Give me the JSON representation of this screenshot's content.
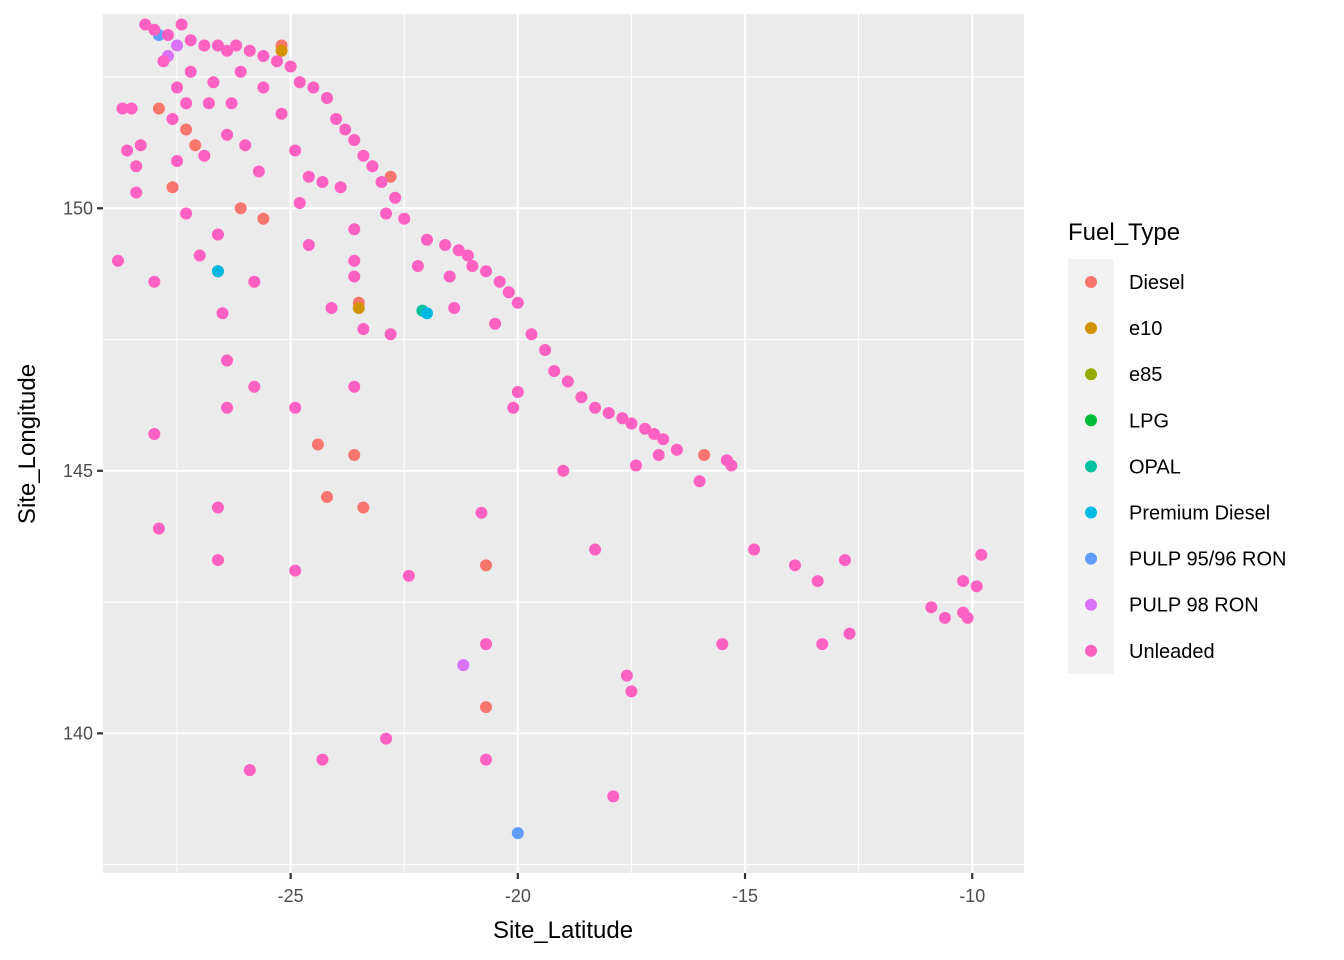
{
  "chart_data": {
    "type": "scatter",
    "xlabel": "Site_Latitude",
    "ylabel": "Site_Longitude",
    "xlim": [
      -29.13,
      -8.86
    ],
    "ylim": [
      137.34,
      153.7
    ],
    "x_ticks": [
      -25,
      -20,
      -15,
      -10
    ],
    "x_tick_labels": [
      "-25",
      "-20",
      "-15",
      "-10"
    ],
    "y_ticks": [
      140,
      145,
      150
    ],
    "y_tick_labels": [
      "140",
      "145",
      "150"
    ],
    "grid": true,
    "legend": {
      "title": "Fuel_Type",
      "placement": "right"
    },
    "series": [
      {
        "name": "Diesel",
        "color": "#F8766D",
        "points": [
          [
            -25.2,
            153.1
          ],
          [
            -27.6,
            150.4
          ],
          [
            -26.1,
            150.0
          ],
          [
            -25.6,
            149.8
          ],
          [
            -27.1,
            151.2
          ],
          [
            -27.3,
            151.5
          ],
          [
            -22.8,
            150.6
          ],
          [
            -23.5,
            148.2
          ],
          [
            -24.4,
            145.5
          ],
          [
            -23.6,
            145.3
          ],
          [
            -24.2,
            144.5
          ],
          [
            -23.4,
            144.3
          ],
          [
            -20.7,
            143.2
          ],
          [
            -20.7,
            140.5
          ],
          [
            -15.9,
            145.3
          ],
          [
            -27.9,
            151.9
          ],
          [
            -26.6,
            148.8
          ]
        ]
      },
      {
        "name": "e10",
        "color": "#D39200",
        "points": [
          [
            -25.2,
            153.0
          ],
          [
            -23.5,
            148.1
          ]
        ]
      },
      {
        "name": "e85",
        "color": "#93AA00",
        "points": []
      },
      {
        "name": "LPG",
        "color": "#00BA38",
        "points": []
      },
      {
        "name": "OPAL",
        "color": "#00C19F",
        "points": [
          [
            -22.1,
            148.05
          ]
        ]
      },
      {
        "name": "Premium Diesel",
        "color": "#00B9E3",
        "points": [
          [
            -22.0,
            148.0
          ],
          [
            -26.6,
            148.8
          ]
        ]
      },
      {
        "name": "PULP 95/96 RON",
        "color": "#619CFF",
        "points": [
          [
            -20.0,
            138.1
          ],
          [
            -27.9,
            153.3
          ]
        ]
      },
      {
        "name": "PULP 98 RON",
        "color": "#DB72FB",
        "points": [
          [
            -21.2,
            141.3
          ],
          [
            -27.5,
            153.1
          ],
          [
            -27.7,
            152.9
          ]
        ]
      },
      {
        "name": "Unleaded",
        "color": "#FF61C3",
        "points": [
          [
            -28.2,
            153.5
          ],
          [
            -28.0,
            153.4
          ],
          [
            -27.7,
            153.3
          ],
          [
            -27.4,
            153.5
          ],
          [
            -27.2,
            153.2
          ],
          [
            -26.9,
            153.1
          ],
          [
            -26.6,
            153.1
          ],
          [
            -26.4,
            153.0
          ],
          [
            -26.2,
            153.1
          ],
          [
            -25.9,
            153.0
          ],
          [
            -25.6,
            152.9
          ],
          [
            -25.3,
            152.8
          ],
          [
            -25.0,
            152.7
          ],
          [
            -24.8,
            152.4
          ],
          [
            -24.5,
            152.3
          ],
          [
            -24.2,
            152.1
          ],
          [
            -24.0,
            151.7
          ],
          [
            -23.8,
            151.5
          ],
          [
            -23.6,
            151.3
          ],
          [
            -23.4,
            151.0
          ],
          [
            -23.2,
            150.8
          ],
          [
            -23.0,
            150.5
          ],
          [
            -22.7,
            150.2
          ],
          [
            -22.5,
            149.8
          ],
          [
            -22.0,
            149.4
          ],
          [
            -21.6,
            149.3
          ],
          [
            -21.3,
            149.2
          ],
          [
            -21.1,
            149.1
          ],
          [
            -21.0,
            148.9
          ],
          [
            -20.7,
            148.8
          ],
          [
            -20.4,
            148.6
          ],
          [
            -20.2,
            148.4
          ],
          [
            -20.0,
            148.2
          ],
          [
            -19.7,
            147.6
          ],
          [
            -19.4,
            147.3
          ],
          [
            -19.2,
            146.9
          ],
          [
            -18.9,
            146.7
          ],
          [
            -18.6,
            146.4
          ],
          [
            -18.3,
            146.2
          ],
          [
            -18.0,
            146.1
          ],
          [
            -17.7,
            146.0
          ],
          [
            -17.5,
            145.9
          ],
          [
            -17.2,
            145.8
          ],
          [
            -17.0,
            145.7
          ],
          [
            -16.8,
            145.6
          ],
          [
            -16.5,
            145.4
          ],
          [
            -15.4,
            145.2
          ],
          [
            -15.3,
            145.1
          ],
          [
            -16.0,
            144.8
          ],
          [
            -17.4,
            145.1
          ],
          [
            -16.9,
            145.3
          ],
          [
            -28.5,
            151.9
          ],
          [
            -28.7,
            151.9
          ],
          [
            -28.3,
            151.2
          ],
          [
            -28.6,
            151.1
          ],
          [
            -28.4,
            150.8
          ],
          [
            -28.4,
            150.3
          ],
          [
            -28.8,
            149.0
          ],
          [
            -28.0,
            148.6
          ],
          [
            -28.0,
            145.7
          ],
          [
            -27.9,
            143.9
          ],
          [
            -26.6,
            144.3
          ],
          [
            -26.6,
            143.3
          ],
          [
            -25.9,
            139.3
          ],
          [
            -24.9,
            143.1
          ],
          [
            -24.3,
            139.5
          ],
          [
            -22.9,
            139.9
          ],
          [
            -22.4,
            143.0
          ],
          [
            -20.8,
            144.2
          ],
          [
            -20.7,
            141.7
          ],
          [
            -20.7,
            139.5
          ],
          [
            -17.9,
            138.8
          ],
          [
            -17.6,
            141.1
          ],
          [
            -17.5,
            140.8
          ],
          [
            -18.3,
            143.5
          ],
          [
            -19.0,
            145.0
          ],
          [
            -15.5,
            141.7
          ],
          [
            -14.8,
            143.5
          ],
          [
            -13.9,
            143.2
          ],
          [
            -13.4,
            142.9
          ],
          [
            -13.3,
            141.7
          ],
          [
            -12.7,
            141.9
          ],
          [
            -12.8,
            143.3
          ],
          [
            -10.9,
            142.4
          ],
          [
            -10.6,
            142.2
          ],
          [
            -10.2,
            142.3
          ],
          [
            -10.2,
            142.9
          ],
          [
            -9.9,
            142.8
          ],
          [
            -9.8,
            143.4
          ],
          [
            -10.1,
            142.2
          ],
          [
            -26.4,
            147.1
          ],
          [
            -25.8,
            146.6
          ],
          [
            -24.9,
            146.2
          ],
          [
            -23.6,
            146.6
          ],
          [
            -26.4,
            146.2
          ],
          [
            -26.5,
            148.0
          ],
          [
            -25.8,
            148.6
          ],
          [
            -27.0,
            149.1
          ],
          [
            -26.6,
            149.5
          ],
          [
            -27.3,
            149.9
          ],
          [
            -24.6,
            149.3
          ],
          [
            -24.1,
            148.1
          ],
          [
            -23.4,
            147.7
          ],
          [
            -22.8,
            147.6
          ],
          [
            -23.6,
            149.0
          ],
          [
            -23.6,
            148.7
          ],
          [
            -23.6,
            149.6
          ],
          [
            -22.2,
            148.9
          ],
          [
            -21.5,
            148.7
          ],
          [
            -21.4,
            148.1
          ],
          [
            -20.5,
            147.8
          ],
          [
            -20.1,
            146.2
          ],
          [
            -20.0,
            146.5
          ],
          [
            -24.8,
            150.1
          ],
          [
            -24.6,
            150.6
          ],
          [
            -24.3,
            150.5
          ],
          [
            -23.9,
            150.4
          ],
          [
            -22.9,
            149.9
          ],
          [
            -25.7,
            150.7
          ],
          [
            -26.0,
            151.2
          ],
          [
            -26.4,
            151.4
          ],
          [
            -26.9,
            151.0
          ],
          [
            -27.5,
            150.9
          ],
          [
            -27.6,
            151.7
          ],
          [
            -27.3,
            152.0
          ],
          [
            -26.8,
            152.0
          ],
          [
            -26.3,
            152.0
          ],
          [
            -25.6,
            152.3
          ],
          [
            -25.2,
            151.8
          ],
          [
            -24.9,
            151.1
          ],
          [
            -26.1,
            152.6
          ],
          [
            -26.7,
            152.4
          ],
          [
            -27.2,
            152.6
          ],
          [
            -27.8,
            152.8
          ],
          [
            -27.5,
            152.3
          ]
        ]
      }
    ]
  }
}
